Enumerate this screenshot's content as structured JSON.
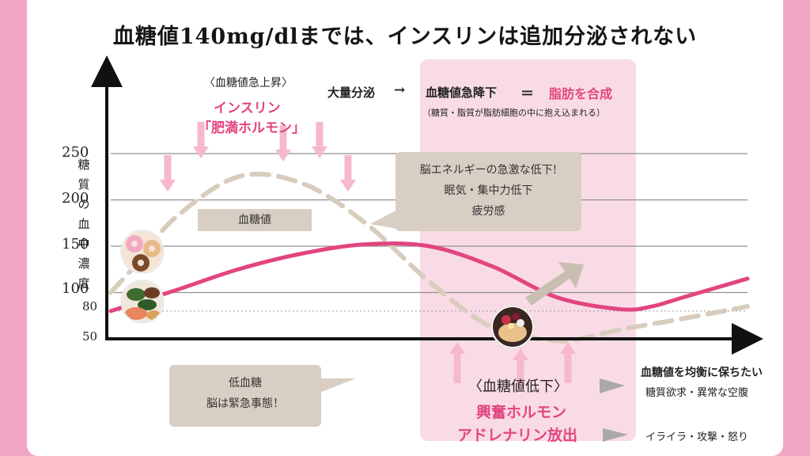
{
  "title": "血糖値140mg/dlまでは、インスリンは追加分泌されない",
  "colors": {
    "background": "#f2a6c6",
    "card": "#ffffff",
    "pink_zone": "#f9dbe5",
    "insulin_curve": "#e2457f",
    "blood_sugar_curve": "#d8cdbd",
    "callout": "#d9cec4",
    "pink_text": "#e2457f"
  },
  "chart_data": {
    "type": "line",
    "ylabel": "糖質の血中濃度",
    "yticks": [
      "250",
      "200",
      "150",
      "100",
      "80",
      "50"
    ],
    "ytick_values": [
      250,
      200,
      150,
      100,
      80,
      50
    ],
    "ylim": [
      50,
      275
    ],
    "xlim": [
      0,
      10
    ],
    "grid": true,
    "series": [
      {
        "name": "血糖値",
        "style": "dashed",
        "x": [
          0,
          0.5,
          1,
          2,
          3,
          4,
          5,
          6,
          7,
          7.5,
          8,
          9,
          10
        ],
        "y": [
          100,
          138,
          180,
          225,
          218,
          175,
          112,
          62,
          48,
          52,
          60,
          72,
          85
        ]
      },
      {
        "name": "",
        "style": "solid",
        "x": [
          0,
          1,
          2,
          3,
          4,
          5,
          6,
          7,
          8,
          8.5,
          9,
          10
        ],
        "y": [
          80,
          102,
          125,
          142,
          152,
          150,
          128,
          95,
          82,
          85,
          95,
          115
        ]
      }
    ]
  },
  "annotations": {
    "spike_label": "〈血糖値急上昇〉",
    "insulin_line1": "インスリン",
    "insulin_line2": "「肥満ホルモン」",
    "mass_secretion": "大量分泌",
    "arrow_sym": "→",
    "sugar_drop": "血糖値急降下",
    "equals_sym": "＝",
    "fat_synth": "脂肪を合成",
    "fat_note": "（糖質・脂質が脂肪細胞の中に抱え込まれる）",
    "sugar_label_box": "血糖値",
    "brain_box_l1": "脳エネルギーの急激な低下!",
    "brain_box_l2": "眠気・集中力低下",
    "brain_box_l3": "疲労感",
    "hypo_box_l1": "低血糖",
    "hypo_box_l2": "脳は緊急事態！",
    "low_label": "〈血糖値低下〉",
    "excite_l1": "興奮ホルモン",
    "excite_l2": "アドレナリン放出",
    "keep_title": "血糖値を均衡に保ちたい",
    "keep_sub": "糖質欲求・異常な空腹",
    "irritate": "イライラ・攻撃・怒り"
  },
  "food_icons": [
    "donuts-image",
    "salad-image",
    "salmon-image",
    "dessert-image"
  ]
}
